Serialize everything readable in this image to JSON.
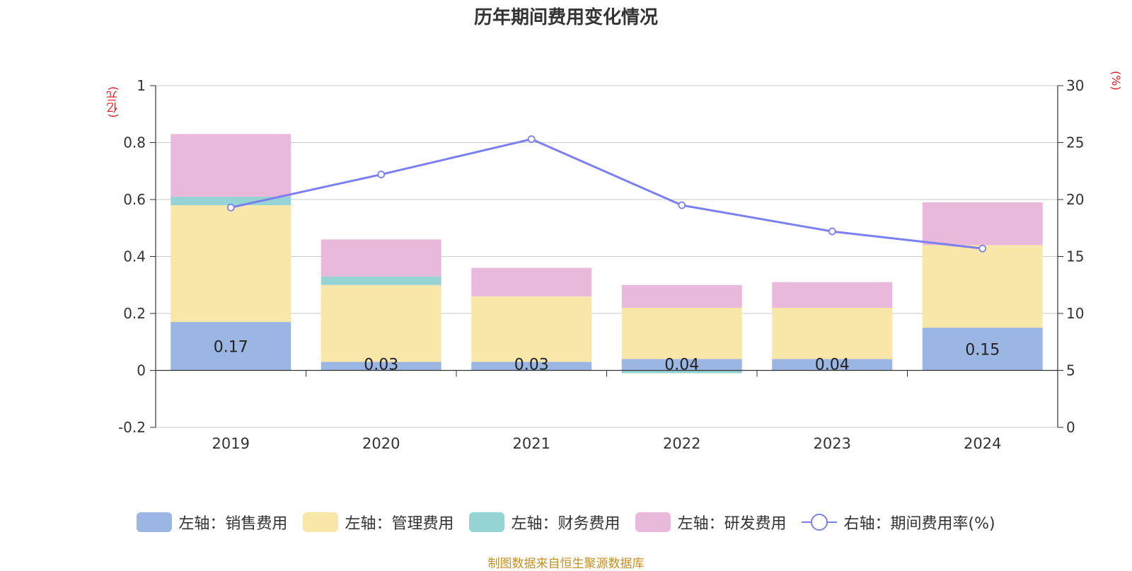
{
  "chart_data": {
    "type": "bar",
    "title": "历年期间费用变化情况",
    "categories": [
      "2019",
      "2020",
      "2021",
      "2022",
      "2023",
      "2024"
    ],
    "series": [
      {
        "name": "左轴：销售费用",
        "axis": "left",
        "color": "#9bb6e2",
        "values": [
          0.17,
          0.03,
          0.03,
          0.04,
          0.04,
          0.15
        ]
      },
      {
        "name": "左轴：管理费用",
        "axis": "left",
        "color": "#f8e7a9",
        "values": [
          0.41,
          0.27,
          0.23,
          0.18,
          0.18,
          0.29
        ]
      },
      {
        "name": "左轴：财务费用",
        "axis": "left",
        "color": "#96d3d4",
        "values": [
          0.03,
          0.03,
          0.0,
          -0.01,
          0.0,
          0.0
        ]
      },
      {
        "name": "左轴：研发费用",
        "axis": "left",
        "color": "#e8b9da",
        "values": [
          0.22,
          0.13,
          0.1,
          0.08,
          0.09,
          0.15
        ]
      },
      {
        "name": "右轴：期间费用率(%)",
        "axis": "right",
        "type": "line",
        "color": "#7b7fef",
        "values": [
          19.3,
          22.2,
          25.3,
          19.5,
          17.2,
          15.7
        ]
      }
    ],
    "data_labels": [
      "0.17",
      "0.03",
      "0.03",
      "0.04",
      "0.04",
      "0.15"
    ],
    "y_left": {
      "label": "(亿元)",
      "ylim": [
        -0.2,
        1
      ],
      "ticks": [
        -0.2,
        0,
        0.2,
        0.4,
        0.6,
        0.8,
        1
      ],
      "tick_labels": [
        "-0.2",
        "0",
        "0.2",
        "0.4",
        "0.6",
        "0.8",
        "1"
      ]
    },
    "y_right": {
      "label": "(%)",
      "ylim": [
        0,
        30
      ],
      "ticks": [
        0,
        5,
        10,
        15,
        20,
        25,
        30
      ],
      "tick_labels": [
        "0",
        "5",
        "10",
        "15",
        "20",
        "25",
        "30"
      ]
    },
    "grid": true,
    "legend_position": "bottom"
  },
  "source": "制图数据来自恒生聚源数据库"
}
